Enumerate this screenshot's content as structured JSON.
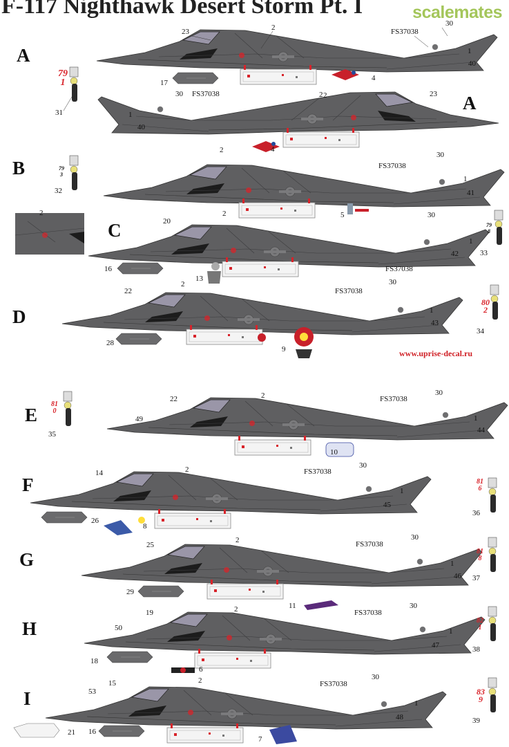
{
  "title": "F-117 Nighthawk Desert Storm Pt. I",
  "watermark": "scalemates",
  "website": "www.uprise-decal.ru",
  "paint_code": "FS37038",
  "colors": {
    "aircraft": "#5f5f61",
    "aircraft_dark": "#474749",
    "red": "#d8232a",
    "black": "#111111"
  },
  "versions": [
    {
      "letter": "A",
      "tail_number": "791",
      "number_style": "red"
    },
    {
      "letter": "A",
      "tail_number": "",
      "number_style": ""
    },
    {
      "letter": "B",
      "tail_number": "793",
      "number_style": "black"
    },
    {
      "letter": "C",
      "tail_number": "798",
      "number_style": "black"
    },
    {
      "letter": "D",
      "tail_number": "802",
      "number_style": "red"
    },
    {
      "letter": "E",
      "tail_number": "810",
      "number_style": "red"
    },
    {
      "letter": "F",
      "tail_number": "816",
      "number_style": "red"
    },
    {
      "letter": "G",
      "tail_number": "818",
      "number_style": "red"
    },
    {
      "letter": "H",
      "tail_number": "821",
      "number_style": "red"
    },
    {
      "letter": "I",
      "tail_number": "839",
      "number_style": "red"
    }
  ],
  "callouts": {
    "a1": [
      "23",
      "2",
      "30",
      "1",
      "40",
      "17",
      "4",
      "2"
    ],
    "a2": [
      "30",
      "1",
      "40",
      "2",
      "23"
    ],
    "a_shared": [
      "31",
      "4"
    ],
    "b": [
      "2",
      "30",
      "1",
      "41",
      "5",
      "32"
    ],
    "c": [
      "2",
      "20",
      "2",
      "30",
      "1",
      "42",
      "13",
      "16",
      "33"
    ],
    "d": [
      "22",
      "2",
      "30",
      "1",
      "43",
      "9",
      "28",
      "34"
    ],
    "e": [
      "22",
      "2",
      "30",
      "49",
      "1",
      "44",
      "10",
      "35"
    ],
    "f": [
      "14",
      "2",
      "30",
      "1",
      "45",
      "26",
      "8",
      "36"
    ],
    "g": [
      "25",
      "2",
      "30",
      "1",
      "46",
      "29",
      "11",
      "37"
    ],
    "h": [
      "19",
      "2",
      "30",
      "50",
      "1",
      "47",
      "18",
      "6",
      "38"
    ],
    "i": [
      "15",
      "2",
      "30",
      "53",
      "1",
      "48",
      "21",
      "16",
      "7",
      "39"
    ]
  }
}
